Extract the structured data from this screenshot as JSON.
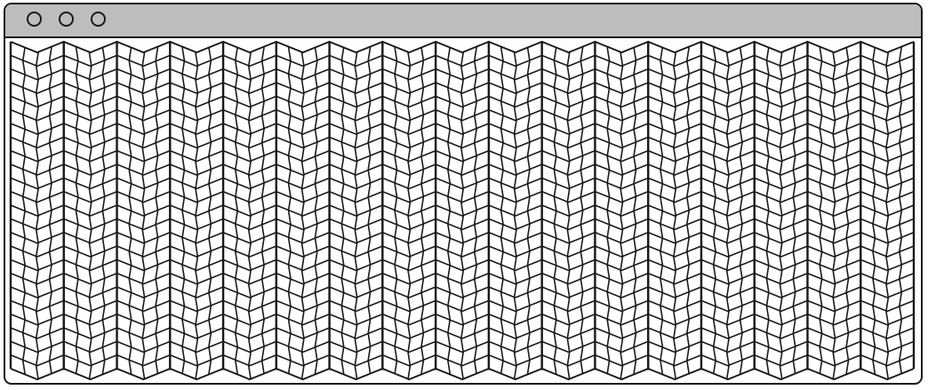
{
  "window": {
    "title": "",
    "controls": [
      {
        "name": "close",
        "icon": "circle-outline-icon"
      },
      {
        "name": "minimize",
        "icon": "circle-outline-icon"
      },
      {
        "name": "zoom",
        "icon": "circle-outline-icon"
      }
    ],
    "colors": {
      "titlebar": "#bdbdbd",
      "stroke": "#1a1a1a",
      "background": "#ffffff"
    }
  },
  "content": {
    "graphic": "pleated-grid-curtain",
    "pleats": 17,
    "columns_per_pleat": 4,
    "rows": 24
  }
}
